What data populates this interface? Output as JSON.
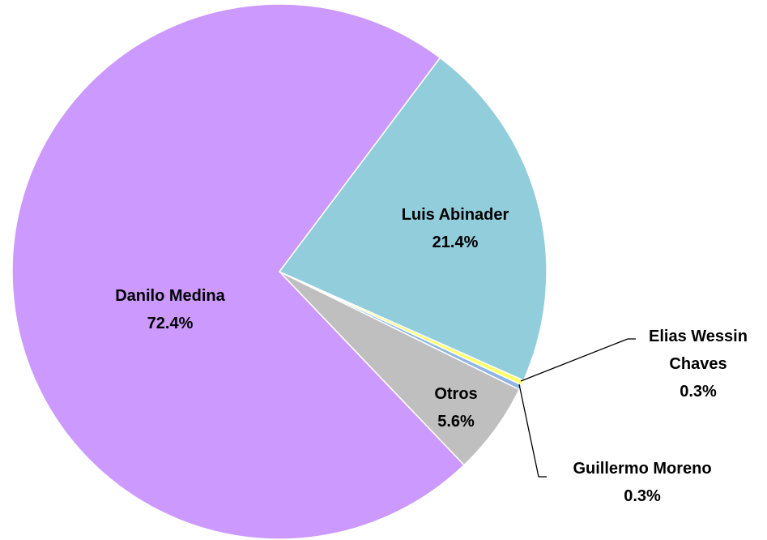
{
  "chart_data": {
    "type": "pie",
    "categories": [
      "Danilo Medina",
      "Luis Abinader",
      "Elias Wessin Chaves",
      "Guillermo Moreno",
      "Otros"
    ],
    "values": [
      72.4,
      21.4,
      0.3,
      0.3,
      5.6
    ],
    "value_labels": [
      "72.4%",
      "21.4%",
      "0.3%",
      "0.3%",
      "5.6%"
    ],
    "colors": [
      "#cc99ff",
      "#92cddc",
      "#ffff66",
      "#8eb4e3",
      "#bfbfbf"
    ]
  }
}
